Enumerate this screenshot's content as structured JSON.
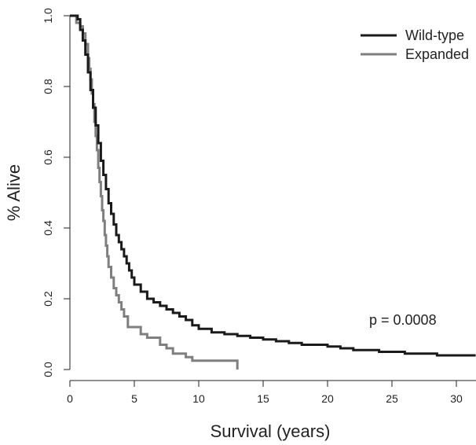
{
  "chart_data": {
    "type": "line",
    "xlabel": "Survival (years)",
    "ylabel": "% Alive",
    "xlim": [
      0,
      31.5
    ],
    "ylim": [
      0,
      1.0
    ],
    "xticks": [
      0,
      5,
      10,
      15,
      20,
      25,
      30
    ],
    "xtick_labels": [
      "0",
      "5",
      "10",
      "15",
      "20",
      "25",
      "30"
    ],
    "yticks": [
      0,
      0.2,
      0.4,
      0.6,
      0.8,
      1.0
    ],
    "ytick_labels": [
      "0.0",
      "0.2",
      "0.4",
      "0.6",
      "0.8",
      "1.0"
    ],
    "legend_position": "top-right",
    "annotation": "p = 0.0008",
    "grid": false,
    "series": [
      {
        "name": "Wild-type",
        "color": "#1a1a1a",
        "x": [
          0,
          0.2,
          0.4,
          0.6,
          0.8,
          1.0,
          1.2,
          1.4,
          1.6,
          1.8,
          2.0,
          2.2,
          2.4,
          2.6,
          2.8,
          3.0,
          3.2,
          3.4,
          3.6,
          3.8,
          4.0,
          4.2,
          4.4,
          4.6,
          4.8,
          5.0,
          5.5,
          6.0,
          6.5,
          7.0,
          7.5,
          8.0,
          8.5,
          9.0,
          9.5,
          10.0,
          11.0,
          12.0,
          13.0,
          14.0,
          15.0,
          16.0,
          17.0,
          18.0,
          19.0,
          20.0,
          21.0,
          22.0,
          24.0,
          26.0,
          28.5,
          31.5
        ],
        "y": [
          1.0,
          1.0,
          1.0,
          0.99,
          0.96,
          0.93,
          0.89,
          0.84,
          0.79,
          0.74,
          0.69,
          0.64,
          0.59,
          0.55,
          0.51,
          0.47,
          0.44,
          0.41,
          0.38,
          0.36,
          0.34,
          0.32,
          0.3,
          0.28,
          0.26,
          0.24,
          0.22,
          0.2,
          0.19,
          0.18,
          0.17,
          0.16,
          0.15,
          0.14,
          0.125,
          0.115,
          0.105,
          0.1,
          0.095,
          0.09,
          0.085,
          0.08,
          0.075,
          0.07,
          0.07,
          0.065,
          0.06,
          0.055,
          0.05,
          0.045,
          0.04,
          0.04
        ]
      },
      {
        "name": "Expanded",
        "color": "#7f7f7f",
        "x": [
          0,
          0.5,
          0.8,
          1.0,
          1.2,
          1.4,
          1.5,
          1.6,
          1.7,
          1.8,
          1.9,
          2.0,
          2.1,
          2.2,
          2.3,
          2.4,
          2.5,
          2.6,
          2.7,
          2.8,
          2.9,
          3.0,
          3.2,
          3.4,
          3.6,
          3.8,
          4.0,
          4.2,
          4.5,
          5.5,
          6.0,
          7.0,
          7.5,
          8.0,
          9.0,
          9.5,
          13.0
        ],
        "y": [
          1.0,
          0.98,
          0.97,
          0.95,
          0.92,
          0.88,
          0.85,
          0.82,
          0.78,
          0.75,
          0.7,
          0.66,
          0.62,
          0.57,
          0.53,
          0.49,
          0.45,
          0.42,
          0.38,
          0.35,
          0.32,
          0.29,
          0.26,
          0.23,
          0.21,
          0.19,
          0.17,
          0.15,
          0.12,
          0.1,
          0.09,
          0.07,
          0.06,
          0.045,
          0.035,
          0.025,
          0.0
        ]
      }
    ]
  }
}
